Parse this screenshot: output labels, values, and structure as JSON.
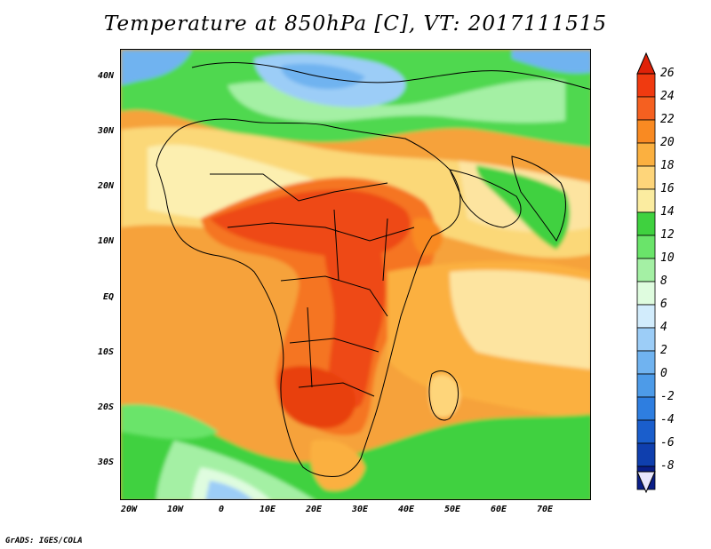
{
  "title": "Temperature at 850hPa [C], VT: 2017111515",
  "credit": "GrADS: IGES/COLA",
  "latitude_labels": [
    "40N",
    "30N",
    "20N",
    "10N",
    "EQ",
    "10S",
    "20S",
    "30S"
  ],
  "longitude_labels": [
    "20W",
    "10W",
    "0",
    "10E",
    "20E",
    "30E",
    "40E",
    "50E",
    "60E",
    "70E"
  ],
  "colorbar": {
    "labels": [
      "26",
      "24",
      "22",
      "20",
      "18",
      "16",
      "14",
      "12",
      "10",
      "8",
      "6",
      "4",
      "2",
      "0",
      "-2",
      "-4",
      "-6",
      "-8"
    ],
    "colors": [
      "#f03a10",
      "#f56020",
      "#f98a22",
      "#fbb040",
      "#fed57a",
      "#fbeca0",
      "#3fd13f",
      "#6ae46a",
      "#a4f0a4",
      "#dffcdf",
      "#d2ecfc",
      "#9ccdf7",
      "#70b3f0",
      "#4d9be8",
      "#2e7ee0",
      "#1a5ecc",
      "#0f3fae",
      "#0a1e88"
    ],
    "top_arrow_color": "#e02208",
    "bottom_arrow_color": "#e8e6fc"
  }
}
